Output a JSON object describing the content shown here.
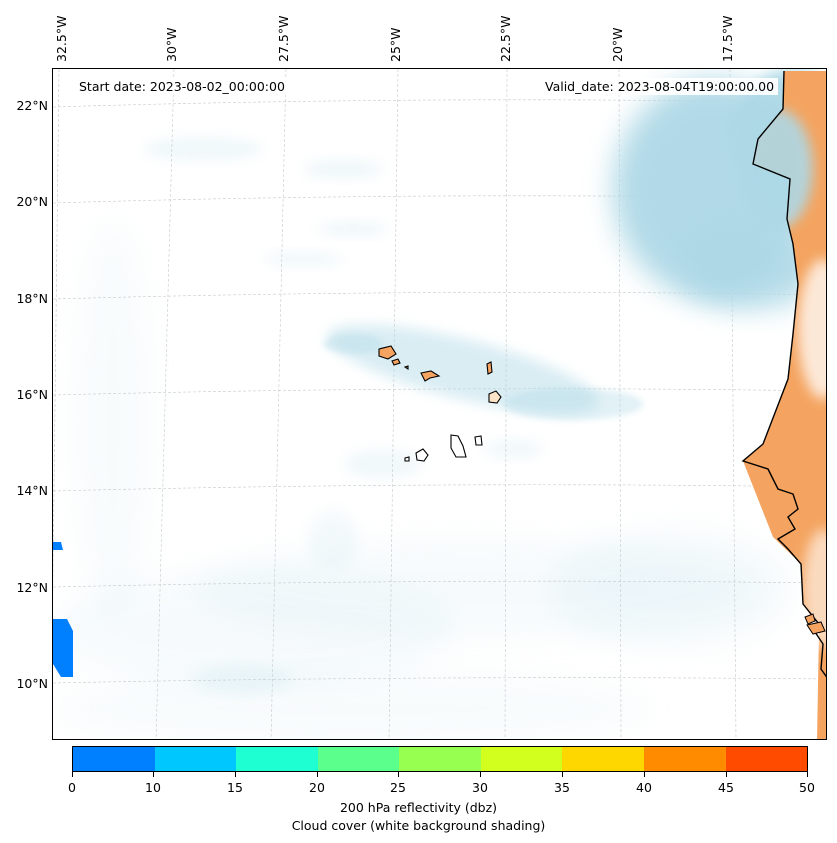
{
  "lon_labels": [
    "32.5°W",
    "30°W",
    "27.5°W",
    "25°W",
    "22.5°W",
    "20°W",
    "17.5°W"
  ],
  "lat_labels": [
    "22°N",
    "20°N",
    "18°N",
    "16°N",
    "14°N",
    "12°N",
    "10°N"
  ],
  "start_date_text": "Start date: 2023-08-02_00:00:00",
  "valid_date_text": "Valid_date: 2023-08-04T19:00:00.00",
  "colorbar": {
    "ticks": [
      "0",
      "10",
      "15",
      "20",
      "25",
      "30",
      "35",
      "40",
      "45",
      "50"
    ],
    "colors": [
      "#0080ff",
      "#00c8ff",
      "#1effd2",
      "#5aff8c",
      "#96ff50",
      "#d2ff1e",
      "#ffd700",
      "#ff8c00",
      "#ff4b00"
    ],
    "label_line1": "200 hPa reflectivity (dbz)",
    "label_line2": "Cloud cover (white background shading)"
  },
  "colors": {
    "land": "#f4a460",
    "cloud": "#add8e6",
    "gridline": "#c8c8c8",
    "coastline": "#000000"
  }
}
